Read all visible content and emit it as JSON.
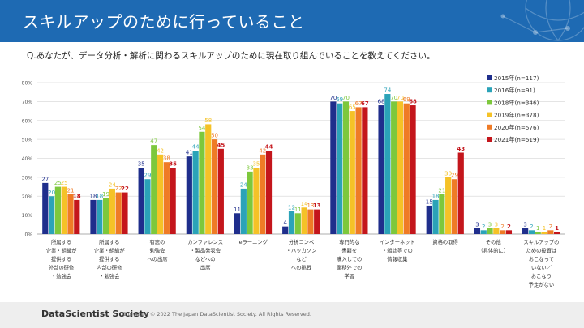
{
  "header": {
    "title": "スキルアップのために行っていること"
  },
  "question": "Q.あなたが、データ分析・解析に関わるスキルアップのために現在取り組んでいることを教えてください。",
  "footer": {
    "logo": "DataScientist Society",
    "copyright": "Copyright © 2022 The Japan DataScientist Society. All Rights Reserved."
  },
  "colors": {
    "header": "#1e6ab3",
    "series": [
      "#1f2e8c",
      "#2ba3b8",
      "#7dc83c",
      "#f5c227",
      "#ef7b26",
      "#c4161c"
    ]
  },
  "chart_data": {
    "type": "bar",
    "ylim": [
      0,
      80
    ],
    "yticks": [
      "0%",
      "10%",
      "20%",
      "30%",
      "40%",
      "50%",
      "60%",
      "70%",
      "80%"
    ],
    "grid": true,
    "legend_position": "right",
    "categories": [
      [
        "所属する",
        "企業・組織が",
        "提供する",
        "外部の研修",
        "・勉強会"
      ],
      [
        "所属する",
        "企業・組織が",
        "提供する",
        "内部の研修",
        "・勉強会"
      ],
      [
        "有志の",
        "勉強会",
        "への出席"
      ],
      [
        "カンファレンス",
        "・製品発表会",
        "などへの",
        "出席"
      ],
      [
        "eラーニング"
      ],
      [
        "分析コンペ",
        "・ハッカソン",
        "など",
        "への挑戦"
      ],
      [
        "専門的な",
        "書籍を",
        "購入しての",
        "業務外での",
        "学習"
      ],
      [
        "インターネット",
        "・雑誌等での",
        "情報収集"
      ],
      [
        "資格の取得"
      ],
      [
        "その他",
        "（具体的に）"
      ],
      [
        "スキルアップの",
        "ための投資は",
        "おこなって",
        "いない／",
        "おこなう",
        "予定がない"
      ]
    ],
    "series": [
      {
        "name": "2015年(n=117)",
        "values": [
          27,
          18,
          35,
          41,
          11,
          4,
          70,
          68,
          15,
          3,
          3
        ]
      },
      {
        "name": "2016年(n=91)",
        "values": [
          20,
          18,
          29,
          44,
          24,
          12,
          69,
          74,
          18,
          2,
          2
        ]
      },
      {
        "name": "2018年(n=346)",
        "values": [
          25,
          19,
          47,
          54,
          33,
          11,
          70,
          70,
          21,
          3,
          1
        ]
      },
      {
        "name": "2019年(n=378)",
        "values": [
          25,
          24,
          42,
          58,
          35,
          14,
          65,
          70,
          30,
          3,
          1
        ]
      },
      {
        "name": "2020年(n=576)",
        "values": [
          21,
          22,
          38,
          50,
          42,
          13,
          67,
          69,
          29,
          2,
          2
        ]
      },
      {
        "name": "2021年(n=519)",
        "values": [
          18,
          22,
          35,
          45,
          44,
          13,
          67,
          68,
          43,
          2,
          1
        ]
      }
    ]
  }
}
